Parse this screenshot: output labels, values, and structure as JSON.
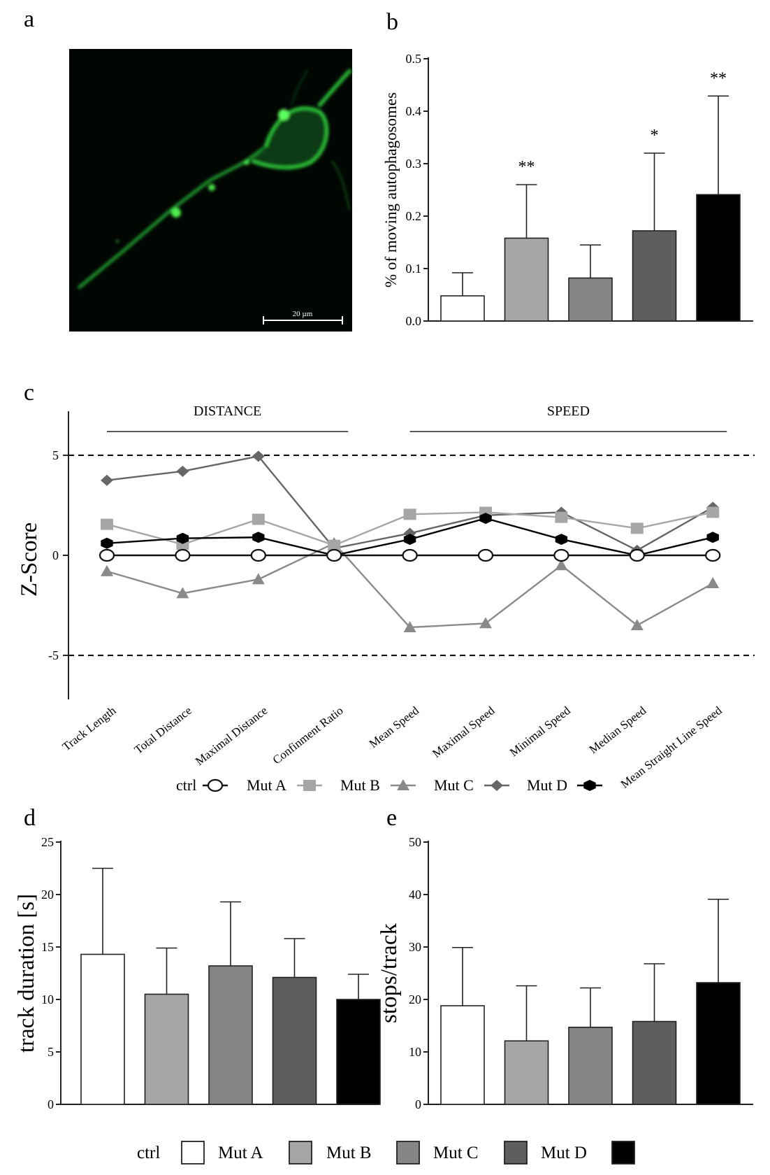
{
  "panels": {
    "a": {
      "letter": "a",
      "scale_bar_label": "20 µm"
    },
    "b": {
      "letter": "b"
    },
    "c": {
      "letter": "c"
    },
    "d": {
      "letter": "d"
    },
    "e": {
      "letter": "e"
    }
  },
  "legend_c": {
    "items": [
      {
        "label": "ctrl",
        "color": "#ffffff",
        "marker": "circle"
      },
      {
        "label": "Mut A",
        "color": "#a6a6a6",
        "marker": "square"
      },
      {
        "label": "Mut B",
        "color": "#8a8a8a",
        "marker": "triangle"
      },
      {
        "label": "Mut C",
        "color": "#666666",
        "marker": "diamond"
      },
      {
        "label": "Mut D",
        "color": "#000000",
        "marker": "hexagon"
      }
    ]
  },
  "legend_bottom": {
    "items": [
      {
        "label": "ctrl",
        "color": "#ffffff"
      },
      {
        "label": "Mut A",
        "color": "#a6a6a6"
      },
      {
        "label": "Mut B",
        "color": "#858585"
      },
      {
        "label": "Mut C",
        "color": "#5e5e5e"
      },
      {
        "label": "Mut D",
        "color": "#000000"
      }
    ]
  },
  "chart_data": [
    {
      "panel": "b",
      "type": "bar",
      "ylabel": "% of moving autophagosomes",
      "ylim": [
        0,
        0.5
      ],
      "yticks": [
        "0.0",
        "0.1",
        "0.2",
        "0.3",
        "0.4",
        "0.5"
      ],
      "categories": [
        "ctrl",
        "Mut A",
        "Mut B",
        "Mut C",
        "Mut D"
      ],
      "values": [
        0.048,
        0.158,
        0.082,
        0.172,
        0.241
      ],
      "errors": [
        0.044,
        0.102,
        0.063,
        0.148,
        0.188
      ],
      "colors": [
        "#ffffff",
        "#a6a6a6",
        "#858585",
        "#5e5e5e",
        "#000000"
      ],
      "significance": [
        "",
        "**",
        "",
        "*",
        "**"
      ]
    },
    {
      "panel": "c",
      "type": "line",
      "ylabel": "Z-Score",
      "ylim": [
        -7.2,
        7.2
      ],
      "yticks": [
        "-5",
        "0",
        "5"
      ],
      "threshold_lines": [
        5,
        -5
      ],
      "groups": [
        {
          "label": "DISTANCE",
          "from": 0,
          "to": 3
        },
        {
          "label": "SPEED",
          "from": 4,
          "to": 8
        }
      ],
      "categories": [
        "Track Length",
        "Total Distance",
        "Maximal Distance",
        "Confinment Ratio",
        "Mean Speed",
        "Maximal Speed",
        "Minimal Speed",
        "Median Speed",
        "Mean Straight Line Speed"
      ],
      "series": [
        {
          "name": "Mut B",
          "values": [
            -0.8,
            -1.9,
            -1.2,
            0.6,
            -3.6,
            -3.4,
            -0.5,
            -3.5,
            -1.4
          ]
        },
        {
          "name": "Mut C",
          "values": [
            3.75,
            4.2,
            4.95,
            0.35,
            1.1,
            2.0,
            2.15,
            0.25,
            2.4
          ]
        },
        {
          "name": "Mut A",
          "values": [
            1.55,
            0.55,
            1.8,
            0.5,
            2.05,
            2.15,
            1.9,
            1.35,
            2.15
          ]
        },
        {
          "name": "Mut D",
          "values": [
            0.6,
            0.85,
            0.9,
            0.0,
            0.8,
            1.85,
            0.8,
            0.0,
            0.9
          ]
        },
        {
          "name": "ctrl",
          "values": [
            0,
            0,
            0,
            0,
            0,
            0,
            0,
            0,
            0
          ]
        }
      ]
    },
    {
      "panel": "d",
      "type": "bar",
      "ylabel": "track duration [s]",
      "ylim": [
        0,
        25
      ],
      "yticks": [
        "0",
        "5",
        "10",
        "15",
        "20",
        "25"
      ],
      "categories": [
        "ctrl",
        "Mut A",
        "Mut B",
        "Mut C",
        "Mut D"
      ],
      "values": [
        14.3,
        10.5,
        13.2,
        12.1,
        10.0
      ],
      "errors": [
        8.2,
        4.4,
        6.1,
        3.7,
        2.4
      ],
      "colors": [
        "#ffffff",
        "#a6a6a6",
        "#858585",
        "#5e5e5e",
        "#000000"
      ]
    },
    {
      "panel": "e",
      "type": "bar",
      "ylabel": "stops/track",
      "ylim": [
        0,
        50
      ],
      "yticks": [
        "0",
        "10",
        "20",
        "30",
        "40",
        "50"
      ],
      "categories": [
        "ctrl",
        "Mut A",
        "Mut B",
        "Mut C",
        "Mut D"
      ],
      "values": [
        18.8,
        12.1,
        14.7,
        15.8,
        23.2
      ],
      "errors": [
        11.1,
        10.5,
        7.5,
        11.0,
        15.9
      ],
      "colors": [
        "#ffffff",
        "#a6a6a6",
        "#858585",
        "#5e5e5e",
        "#000000"
      ]
    }
  ]
}
